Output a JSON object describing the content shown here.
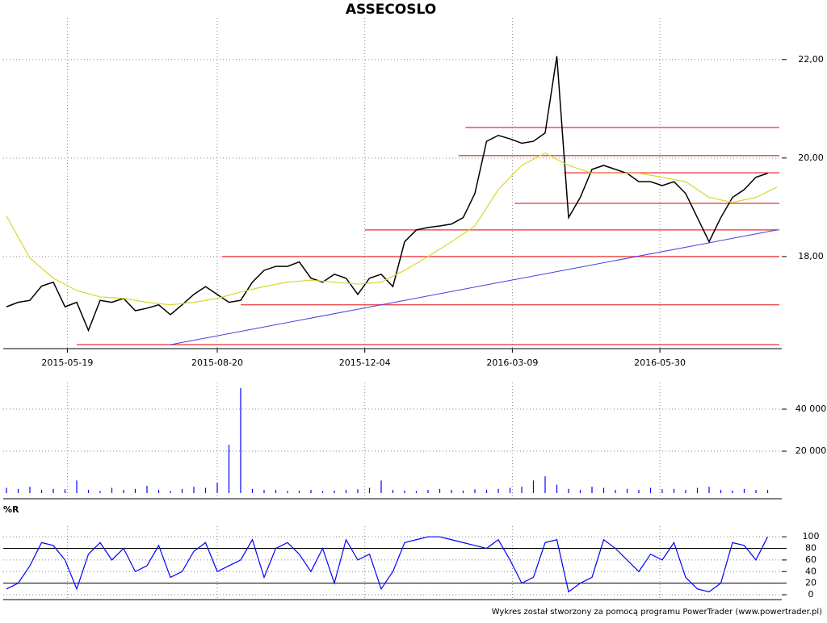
{
  "footer": "Wykres został stworzony za pomocą programu PowerTrader (www.powertrader.pl)",
  "chart_data": [
    {
      "type": "line",
      "title": "ASSECOSLO",
      "xlim": [
        0,
        330
      ],
      "xticks": [
        {
          "value": 26,
          "label": "2015-05-19"
        },
        {
          "value": 90,
          "label": "2015-08-20"
        },
        {
          "value": 153,
          "label": "2015-12-04"
        },
        {
          "value": 216,
          "label": "2016-03-09"
        },
        {
          "value": 279,
          "label": "2016-05-30"
        }
      ],
      "ylim": [
        16.13,
        22.75
      ],
      "yticks": [
        {
          "value": 18,
          "label": "18,00"
        },
        {
          "value": 20,
          "label": "20,00"
        },
        {
          "value": 22,
          "label": "22,00"
        }
      ],
      "grid": true,
      "series": [
        {
          "color": "#000000",
          "x": [
            0,
            5,
            10,
            15,
            20,
            25,
            30,
            35,
            40,
            45,
            50,
            55,
            60,
            65,
            70,
            75,
            80,
            85,
            90,
            95,
            100,
            105,
            110,
            115,
            120,
            125,
            130,
            135,
            140,
            145,
            150,
            155,
            160,
            165,
            170,
            175,
            180,
            185,
            190,
            195,
            200,
            205,
            210,
            215,
            220,
            225,
            230,
            235,
            240,
            245,
            250,
            255,
            260,
            265,
            270,
            275,
            280,
            285,
            290,
            295,
            300,
            305,
            310,
            315,
            320,
            325
          ],
          "values": [
            16.98,
            17.07,
            17.11,
            17.4,
            17.48,
            16.98,
            17.07,
            16.5,
            17.11,
            17.07,
            17.15,
            16.9,
            16.95,
            17.02,
            16.82,
            17.02,
            17.23,
            17.39,
            17.23,
            17.07,
            17.11,
            17.48,
            17.72,
            17.8,
            17.8,
            17.89,
            17.56,
            17.48,
            17.64,
            17.56,
            17.23,
            17.56,
            17.64,
            17.39,
            18.3,
            18.54,
            18.59,
            18.62,
            18.66,
            18.79,
            19.28,
            20.34,
            20.46,
            20.39,
            20.3,
            20.34,
            20.51,
            22.07,
            18.79,
            19.2,
            19.77,
            19.85,
            19.77,
            19.69,
            19.52,
            19.52,
            19.44,
            19.52,
            19.28,
            18.79,
            18.3,
            18.79,
            19.2,
            19.36,
            19.61,
            19.69
          ]
        },
        {
          "color": "#d8d830",
          "x": [
            0,
            10,
            20,
            30,
            40,
            50,
            60,
            70,
            80,
            90,
            100,
            110,
            120,
            130,
            140,
            150,
            160,
            170,
            180,
            190,
            200,
            210,
            220,
            230,
            240,
            250,
            260,
            270,
            280,
            290,
            300,
            310,
            320,
            329
          ],
          "values": [
            18.82,
            17.97,
            17.56,
            17.31,
            17.18,
            17.15,
            17.07,
            17.02,
            17.07,
            17.15,
            17.28,
            17.39,
            17.48,
            17.52,
            17.48,
            17.44,
            17.48,
            17.72,
            18.0,
            18.3,
            18.62,
            19.36,
            19.85,
            20.1,
            19.85,
            19.69,
            19.69,
            19.69,
            19.61,
            19.52,
            19.2,
            19.1,
            19.2,
            19.41
          ]
        }
      ],
      "levels": [
        {
          "value": 20.62,
          "start": 196
        },
        {
          "value": 20.05,
          "start": 193
        },
        {
          "value": 19.7,
          "start": 238
        },
        {
          "value": 19.08,
          "start": 217
        },
        {
          "value": 18.54,
          "start": 153
        },
        {
          "value": 18.0,
          "start": 92
        },
        {
          "value": 17.02,
          "start": 100
        },
        {
          "value": 16.21,
          "start": 30
        }
      ],
      "level_color": "#f05050",
      "trendline": {
        "x": [
          70,
          329
        ],
        "values": [
          16.21,
          18.54
        ],
        "color": "#4040e0"
      }
    },
    {
      "type": "bar",
      "xlim": [
        0,
        330
      ],
      "ylim": [
        0,
        50400
      ],
      "yticks": [
        {
          "value": 20000,
          "label": "20 000"
        },
        {
          "value": 40000,
          "label": "40 000"
        }
      ],
      "grid": true,
      "color": "#0000ff",
      "x": [
        0,
        5,
        10,
        15,
        20,
        25,
        30,
        35,
        40,
        45,
        50,
        55,
        60,
        65,
        70,
        75,
        80,
        85,
        90,
        95,
        100,
        105,
        110,
        115,
        120,
        125,
        130,
        135,
        140,
        145,
        150,
        155,
        160,
        165,
        170,
        175,
        180,
        185,
        190,
        195,
        200,
        205,
        210,
        215,
        220,
        225,
        230,
        235,
        240,
        245,
        250,
        255,
        260,
        265,
        270,
        275,
        280,
        285,
        290,
        295,
        300,
        305,
        310,
        315,
        320,
        325
      ],
      "values": [
        2500,
        2000,
        3000,
        1500,
        2000,
        1800,
        6000,
        1500,
        1000,
        2500,
        1500,
        2000,
        3500,
        1500,
        1000,
        2000,
        3000,
        2500,
        5000,
        23000,
        50000,
        2000,
        1500,
        1500,
        1000,
        1200,
        1500,
        1000,
        1200,
        1500,
        1800,
        2500,
        6000,
        1500,
        1200,
        1000,
        1500,
        2000,
        1500,
        1200,
        1800,
        1500,
        2000,
        2500,
        3000,
        6000,
        8000,
        4000,
        2000,
        1500,
        3000,
        2500,
        1500,
        2000,
        1500,
        2500,
        1800,
        2000,
        1500,
        2500,
        3000,
        1500,
        1200,
        2000,
        1500,
        1500
      ]
    },
    {
      "type": "line",
      "title": "%R",
      "xlim": [
        0,
        330
      ],
      "ylim": [
        -7,
        110
      ],
      "yticks": [
        0,
        20,
        40,
        60,
        80,
        100
      ],
      "grid": true,
      "color": "#0000ff",
      "reference_lines": [
        20,
        80
      ],
      "x": [
        0,
        5,
        10,
        15,
        20,
        25,
        30,
        35,
        40,
        45,
        50,
        55,
        60,
        65,
        70,
        75,
        80,
        85,
        90,
        95,
        100,
        105,
        110,
        115,
        120,
        125,
        130,
        135,
        140,
        145,
        150,
        155,
        160,
        165,
        170,
        175,
        180,
        185,
        190,
        195,
        200,
        205,
        210,
        215,
        220,
        225,
        230,
        235,
        240,
        245,
        250,
        255,
        260,
        265,
        270,
        275,
        280,
        285,
        290,
        295,
        300,
        305,
        310,
        315,
        320,
        325
      ],
      "values": [
        10,
        20,
        50,
        90,
        85,
        60,
        10,
        70,
        90,
        60,
        80,
        40,
        50,
        85,
        30,
        40,
        75,
        90,
        40,
        50,
        60,
        95,
        30,
        80,
        90,
        70,
        40,
        80,
        20,
        95,
        60,
        70,
        10,
        40,
        90,
        95,
        100,
        100,
        95,
        90,
        85,
        80,
        95,
        60,
        20,
        30,
        90,
        95,
        5,
        20,
        30,
        95,
        80,
        60,
        40,
        70,
        60,
        90,
        30,
        10,
        5,
        20,
        90,
        85,
        60,
        100
      ]
    }
  ]
}
